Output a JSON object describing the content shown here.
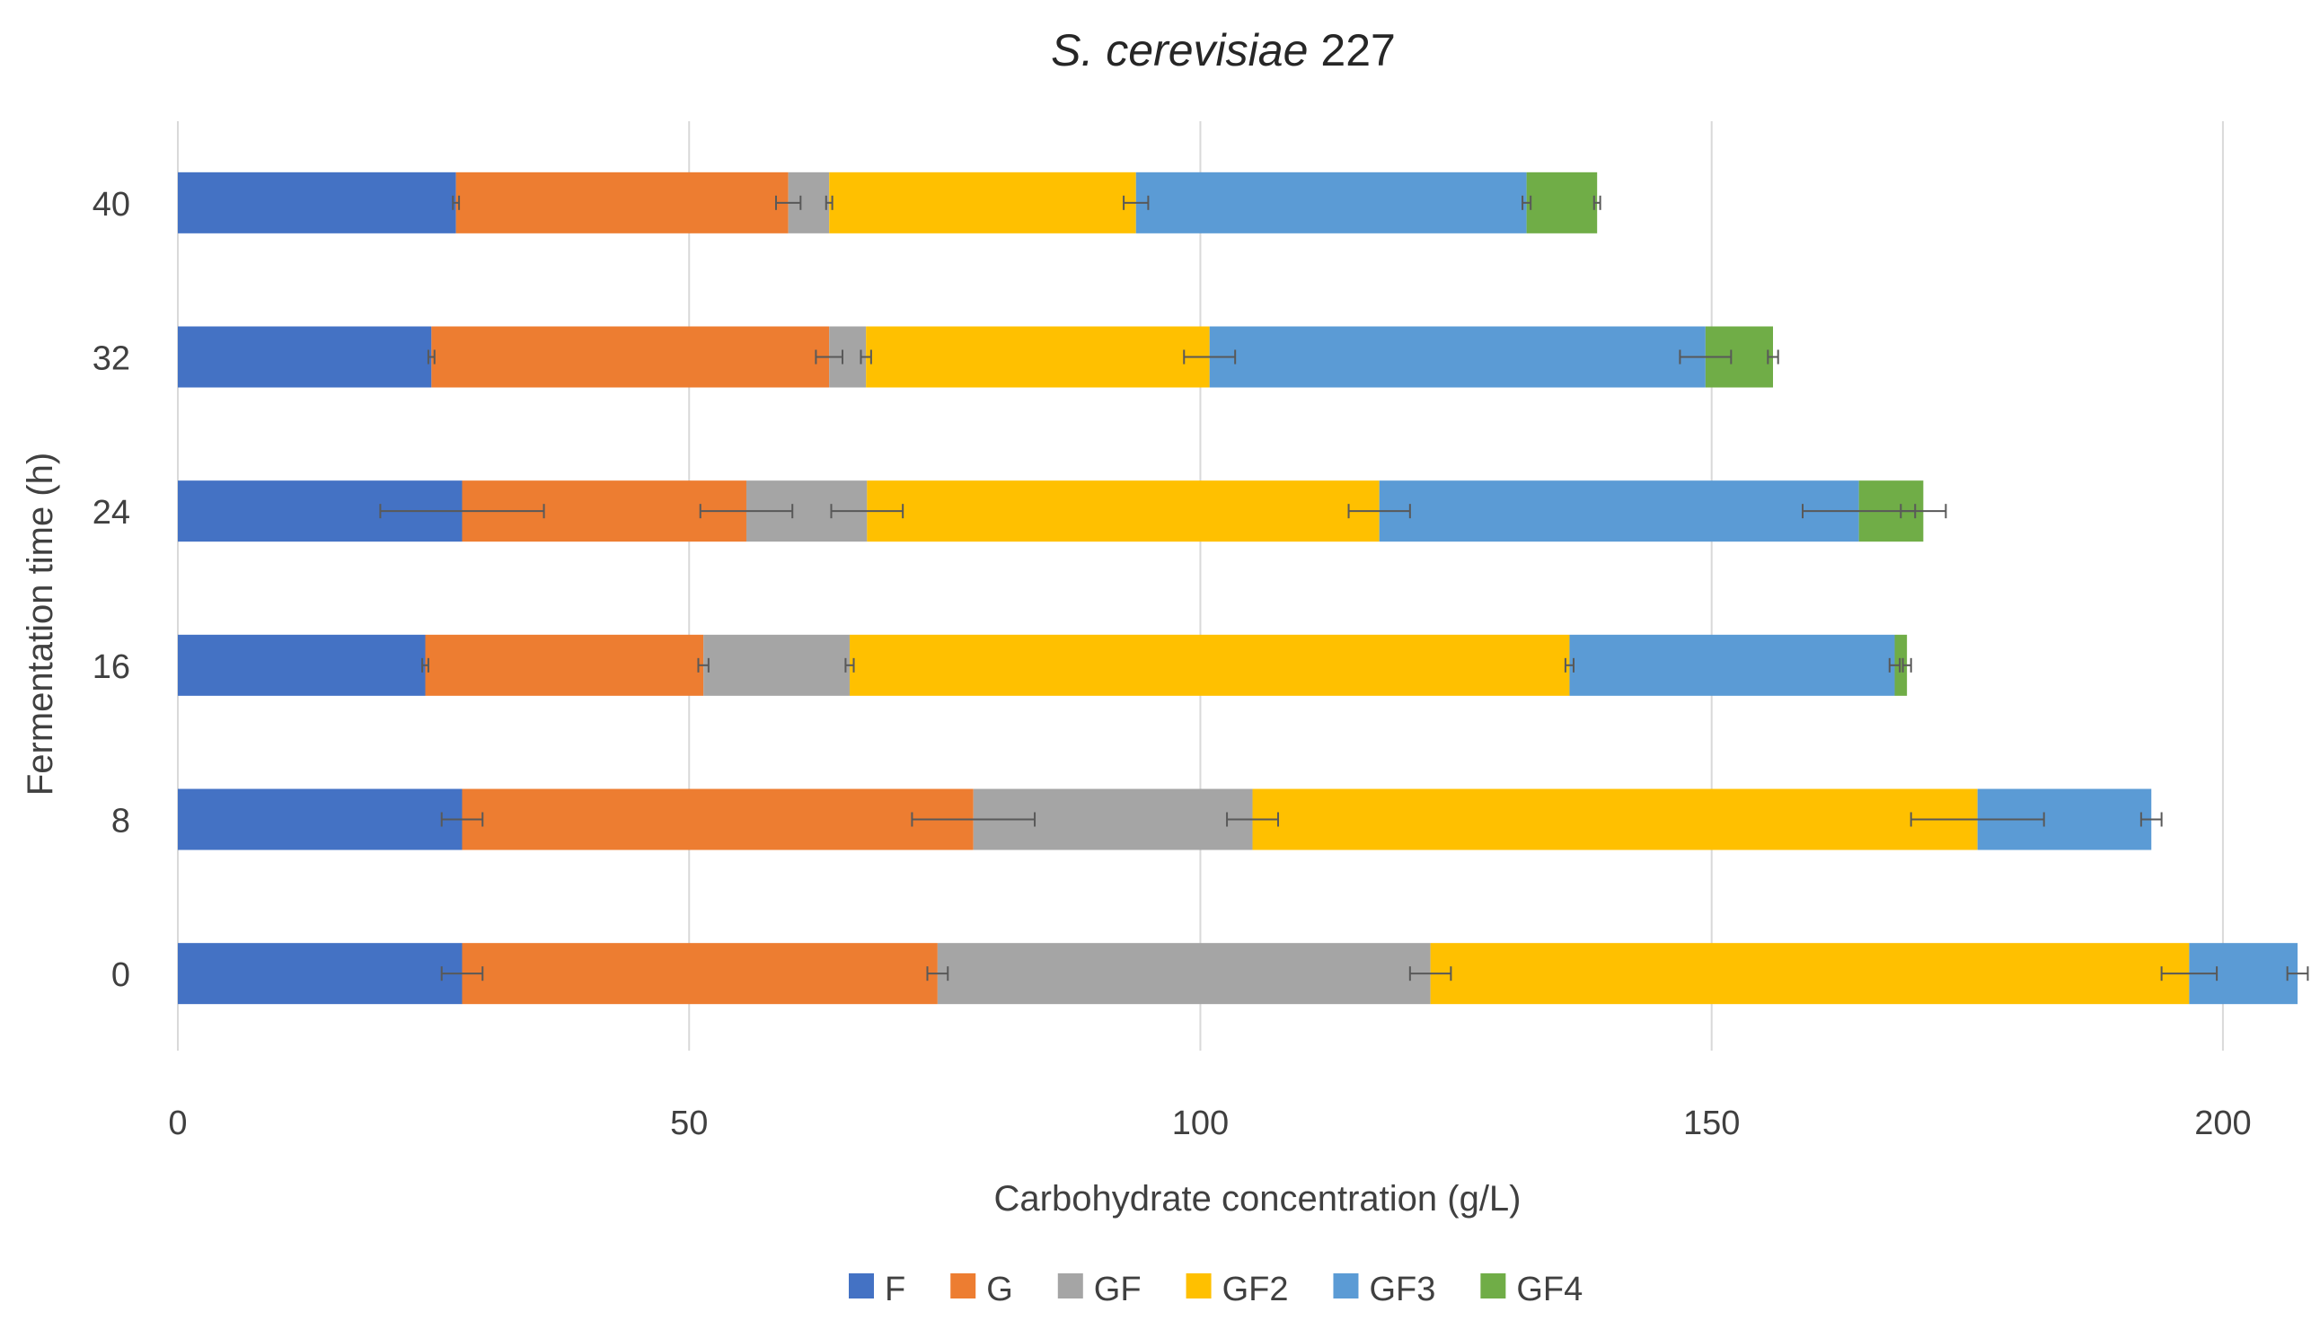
{
  "chart_data": {
    "type": "bar",
    "orientation": "horizontal",
    "stacked": true,
    "title_italic": "S. cerevisiae",
    "title_suffix": "227",
    "xlabel": "Carbohydrate concentration (g/L)",
    "ylabel": "Fermentation time (h)",
    "xlim": [
      0,
      208
    ],
    "xticks": [
      "0",
      "50",
      "100",
      "150",
      "200"
    ],
    "xtick_values": [
      0,
      50,
      100,
      150,
      200
    ],
    "categories": [
      "40",
      "32",
      "24",
      "16",
      "8",
      "0"
    ],
    "grid": "vertical",
    "legend_position": "bottom",
    "series": [
      {
        "name": "F",
        "color": "#4472C4",
        "values": [
          27.2,
          24.8,
          27.8,
          24.2,
          27.8,
          27.8
        ],
        "errors": [
          0.3,
          0.3,
          8.0,
          0.3,
          2.0,
          2.0
        ]
      },
      {
        "name": "G",
        "color": "#ED7D31",
        "values": [
          32.5,
          38.9,
          27.8,
          27.2,
          50.0,
          46.5
        ],
        "errors": [
          1.2,
          1.3,
          4.5,
          0.5,
          6.0,
          1.0
        ]
      },
      {
        "name": "GF",
        "color": "#A5A5A5",
        "values": [
          4.0,
          3.6,
          11.8,
          14.3,
          27.3,
          48.2
        ],
        "errors": [
          0.3,
          0.5,
          3.5,
          0.4,
          2.5,
          2.0
        ]
      },
      {
        "name": "GF2",
        "color": "#FFC000",
        "values": [
          30.0,
          33.6,
          50.1,
          70.4,
          70.9,
          74.2
        ],
        "errors": [
          1.2,
          2.5,
          3.0,
          0.4,
          6.5,
          2.7
        ]
      },
      {
        "name": "GF3",
        "color": "#5B9BD5",
        "values": [
          38.2,
          48.5,
          46.9,
          31.8,
          17.0,
          10.6
        ],
        "errors": [
          0.4,
          2.5,
          5.5,
          0.5,
          1.0,
          1.0
        ]
      },
      {
        "name": "GF4",
        "color": "#70AD47",
        "values": [
          6.9,
          6.6,
          6.3,
          1.2,
          0,
          0
        ],
        "errors": [
          0.3,
          0.5,
          2.2,
          0.4,
          0,
          0
        ]
      }
    ]
  }
}
